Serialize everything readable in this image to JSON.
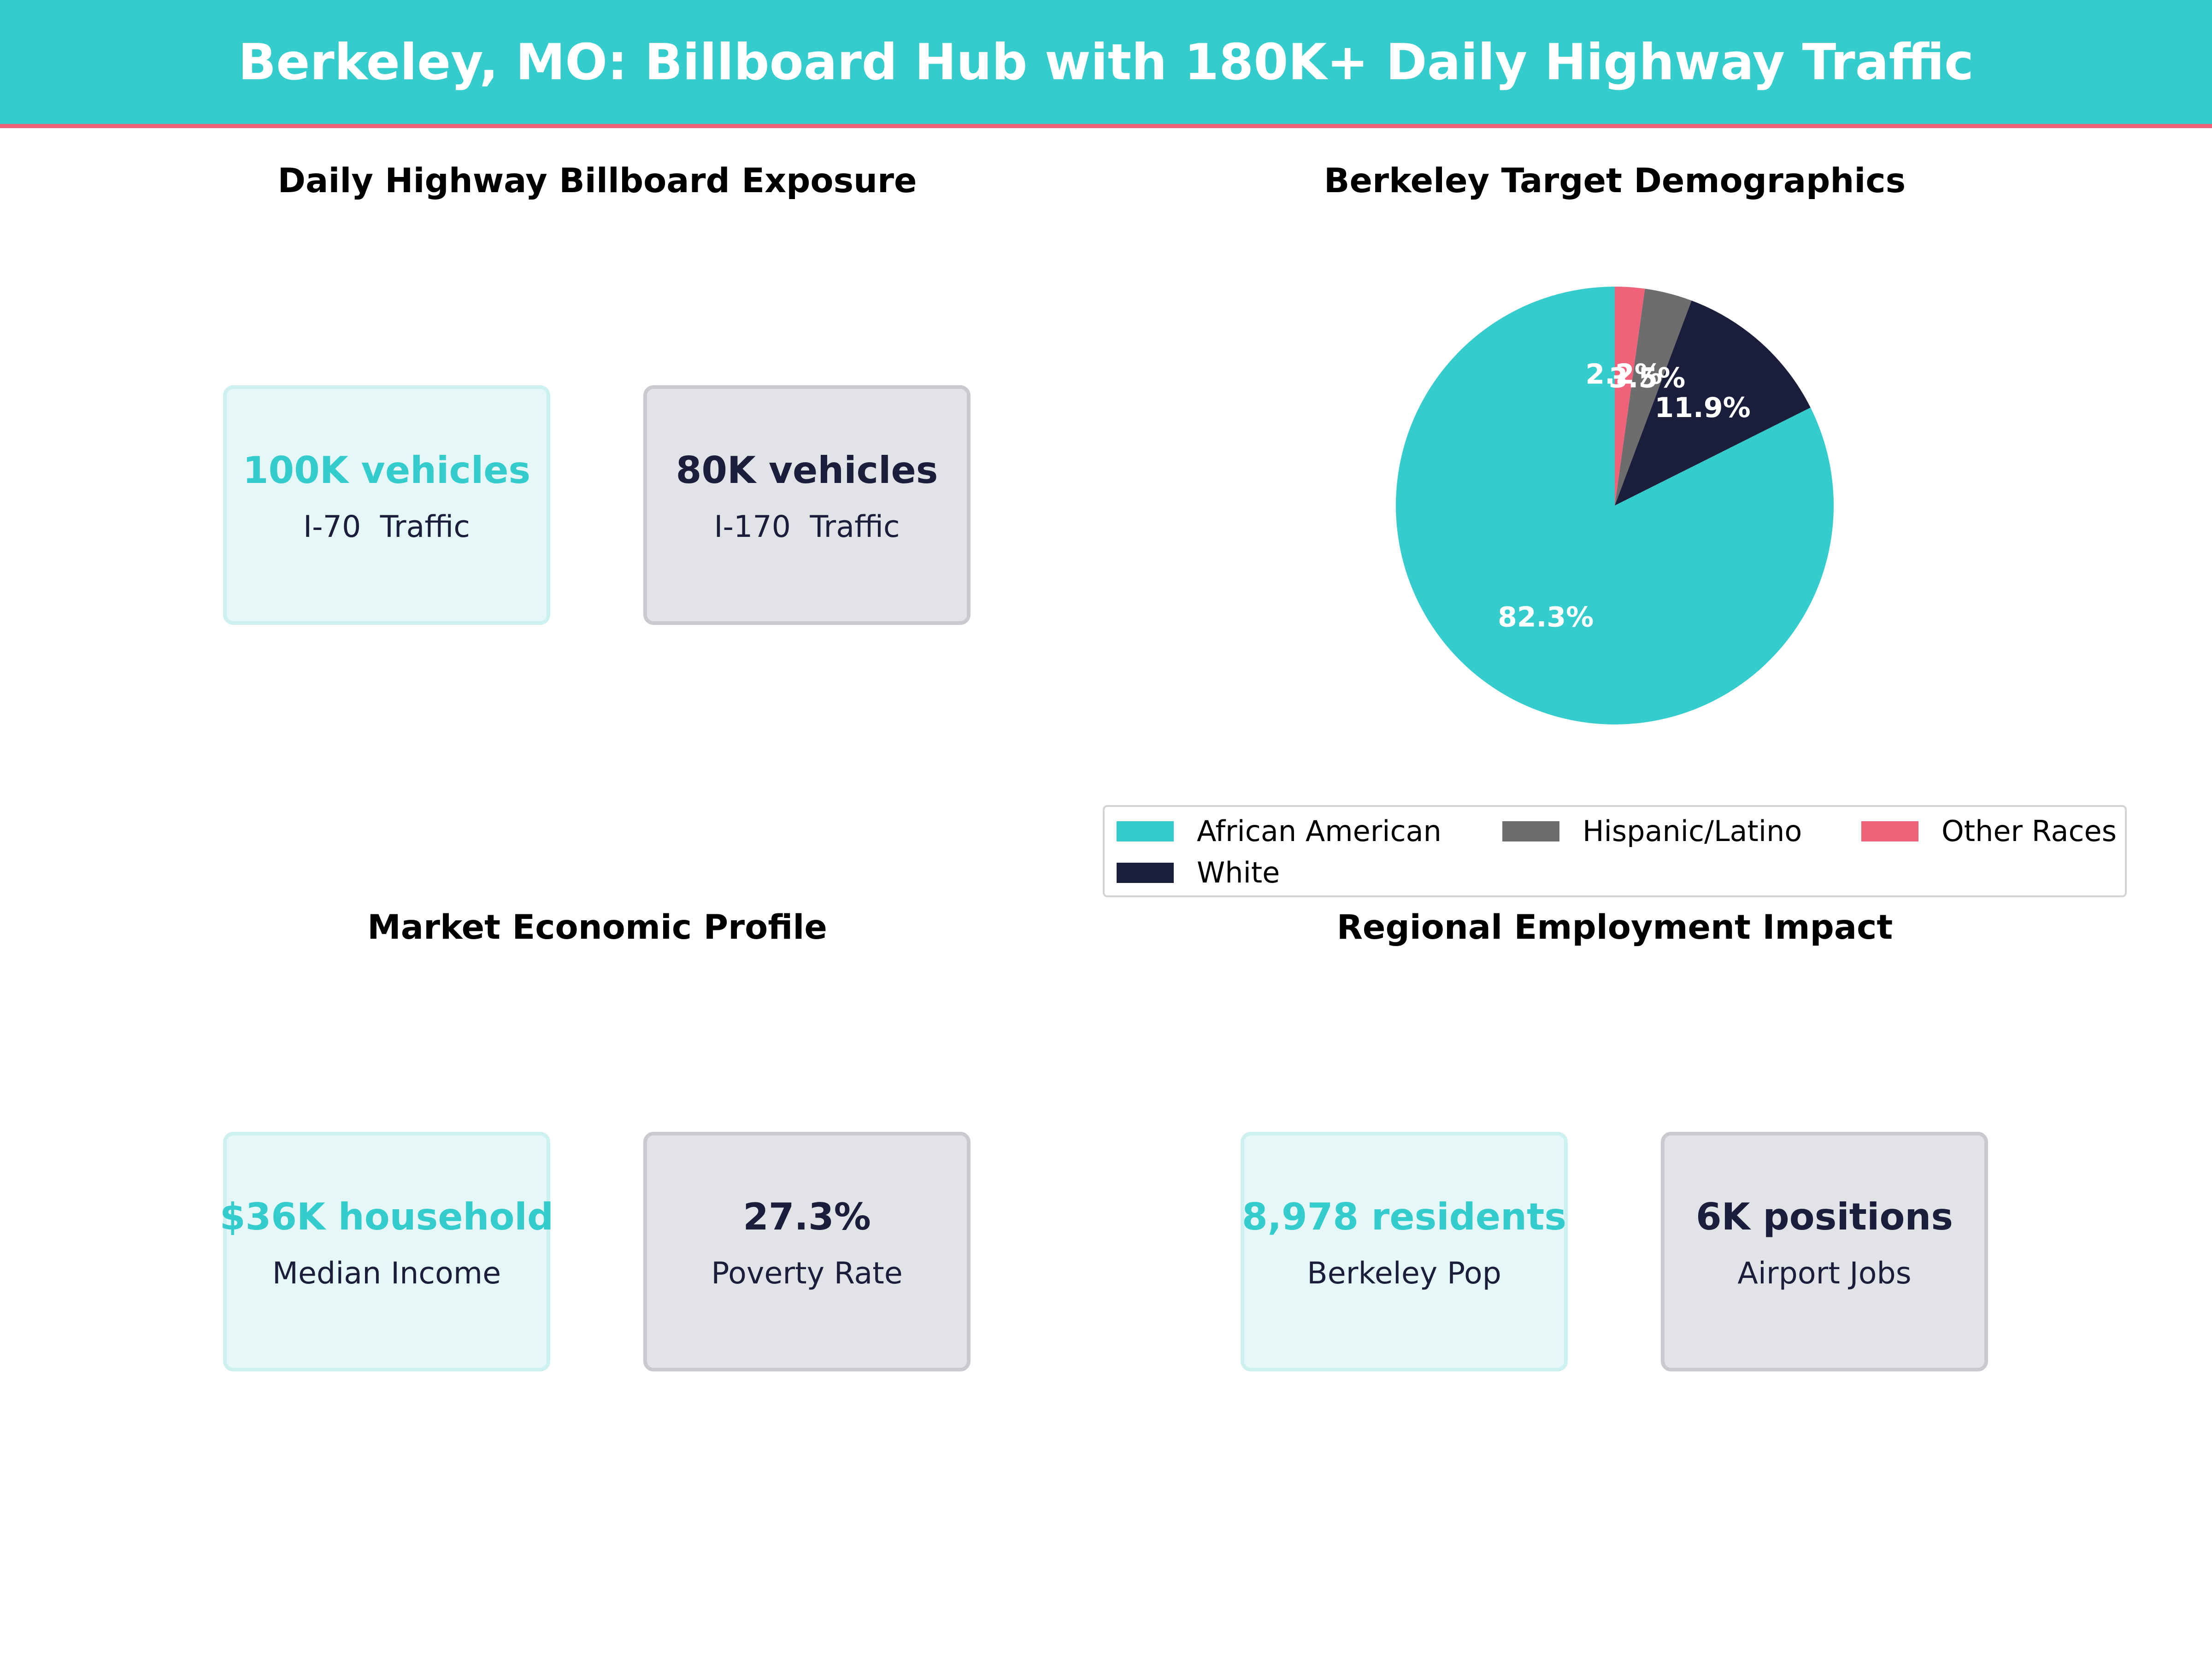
{
  "header": {
    "title": "Berkeley, MO: Billboard Hub with 180K+ Daily Highway Traffic"
  },
  "colors": {
    "teal": "#35cccd",
    "navy": "#1a1e3b",
    "gray": "#6d6d6d",
    "pink": "#f0627a"
  },
  "sections": {
    "exposure": {
      "title": "Daily Highway Billboard Exposure",
      "cards": [
        {
          "value": "100K vehicles",
          "label": "I-70  Traffic"
        },
        {
          "value": "80K vehicles",
          "label": "I-170  Traffic"
        }
      ]
    },
    "demographics": {
      "title": "Berkeley Target Demographics"
    },
    "economic": {
      "title": "Market Economic Profile",
      "cards": [
        {
          "value": "$36K household",
          "label": "Median Income"
        },
        {
          "value": "27.3%",
          "label": "Poverty Rate"
        }
      ]
    },
    "employment": {
      "title": "Regional Employment Impact",
      "cards": [
        {
          "value": "8,978 residents",
          "label": "Berkeley Pop"
        },
        {
          "value": "6K positions",
          "label": "Airport Jobs"
        }
      ]
    }
  },
  "chart_data": {
    "type": "pie",
    "title": "Berkeley Target Demographics",
    "slices": [
      {
        "name": "Other Races",
        "value": 2.2,
        "label": "2.2%",
        "color": "#f0627a"
      },
      {
        "name": "Hispanic/Latino",
        "value": 3.5,
        "label": "3.5%",
        "color": "#6d6d6d"
      },
      {
        "name": "White",
        "value": 11.9,
        "label": "11.9%",
        "color": "#1a1e3b"
      },
      {
        "name": "African American",
        "value": 82.3,
        "label": "82.3%",
        "color": "#35cccd"
      }
    ],
    "legend": {
      "placement": "bottom",
      "entries": [
        "African American",
        "Hispanic/Latino",
        "Other Races",
        "White"
      ]
    }
  }
}
